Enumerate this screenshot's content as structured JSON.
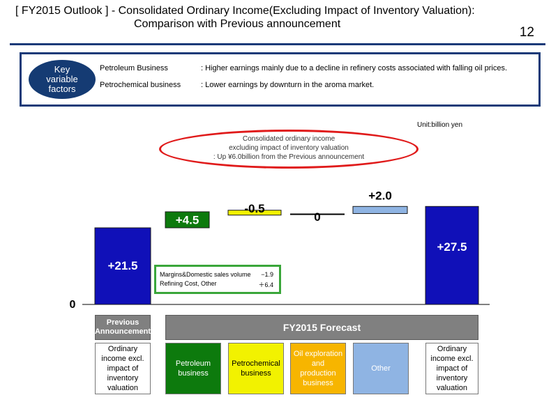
{
  "title": {
    "line1": "[ FY2015 Outlook ] - Consolidated Ordinary Income(Excluding Impact of Inventory Valuation):",
    "line2": "Comparison with Previous announcement",
    "page_number": "12"
  },
  "key_factors": {
    "label": "Key\nvariable\nfactors",
    "items": [
      {
        "name": "Petroleum Business",
        "desc": ": Higher earnings mainly due to a decline in refinery costs associated with falling oil prices."
      },
      {
        "name": "Petrochemical business",
        "desc": ": Lower earnings by downturn in the aroma market."
      }
    ]
  },
  "unit_label": "Unit:billion yen",
  "note_lines": [
    "Consolidated ordinary income",
    "excluding impact of inventory valuation",
    ": Up ¥6.0billion from the Previous announcement"
  ],
  "inset": {
    "rows": [
      {
        "label": "Margins&Domestic sales volume",
        "value": "−1.9"
      },
      {
        "label": "Refining Cost, Other",
        "value": "＋6.4"
      }
    ]
  },
  "headers": {
    "previous": "Previous\nAnnouncement",
    "forecast": "FY2015 Forecast"
  },
  "colors": {
    "blue": "#1010b8",
    "green": "#0d7a0d",
    "yellow": "#f2f200",
    "orange": "#f7b500",
    "light_blue": "#8fb4e3",
    "header_gray": "#808080",
    "navy": "#153b73",
    "red": "#e01a1a"
  },
  "chart_data": {
    "type": "bar",
    "subtype": "waterfall",
    "zero_label": "0",
    "categories": [
      "Ordinary\nincome excl.\nimpact of\ninventory\nvaluation",
      "Petroleum\nbusiness",
      "Petrochemical\nbusiness",
      "Oil exploration\nand\nproduction\nbusiness",
      "Other",
      "Ordinary\nincome excl.\nimpact of\ninventory\nvaluation"
    ],
    "values": [
      21.5,
      4.5,
      -0.5,
      0,
      2.0,
      27.5
    ],
    "value_labels": [
      "+21.5",
      "+4.5",
      "-0.5",
      "0",
      "+2.0",
      "+27.5"
    ],
    "bar_kind": [
      "total",
      "delta",
      "delta",
      "delta",
      "delta",
      "total"
    ],
    "bar_colors": [
      "#1010b8",
      "#0d7a0d",
      "#f2f200",
      "#f7b500",
      "#8fb4e3",
      "#1010b8"
    ],
    "category_text_colors": [
      "#000000",
      "#ffffff",
      "#000000",
      "#ffffff",
      "#ffffff",
      "#000000"
    ],
    "category_fills": [
      "#ffffff",
      "#0d7a0d",
      "#f2f200",
      "#f7b500",
      "#8fb4e3",
      "#ffffff"
    ],
    "ylim": [
      0,
      28.5
    ],
    "grid": false
  }
}
